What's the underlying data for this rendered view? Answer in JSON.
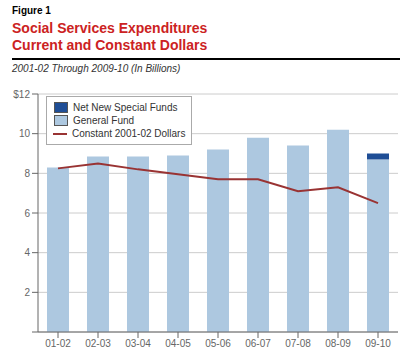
{
  "chart_data": {
    "type": "bar",
    "stacked": true,
    "annotations": [
      "Figure 1"
    ],
    "title": "Social Services Expenditures\nCurrent and Constant Dollars",
    "subtitle": "2001-02 Through 2009-10 (In Billions)",
    "categories": [
      "01-02",
      "02-03",
      "03-04",
      "04-05",
      "05-06",
      "06-07",
      "07-08",
      "08-09",
      "09-10"
    ],
    "series": [
      {
        "name": "Net New Special Funds",
        "type": "bar",
        "color": "#1f4e96",
        "values": [
          0.0,
          0.0,
          0.0,
          0.0,
          0.0,
          0.0,
          0.0,
          0.0,
          0.3
        ]
      },
      {
        "name": "General Fund",
        "type": "bar",
        "color": "#adc8e0",
        "values": [
          8.3,
          8.85,
          8.85,
          8.9,
          9.2,
          9.8,
          9.4,
          10.2,
          8.7
        ]
      },
      {
        "name": "Constant 2001-02 Dollars",
        "type": "line",
        "color": "#993333",
        "values": [
          8.25,
          8.5,
          8.2,
          7.95,
          7.7,
          7.7,
          7.1,
          7.3,
          6.5
        ]
      }
    ],
    "ylim": [
      0,
      12
    ],
    "yticks": [
      {
        "value": 0,
        "label": ""
      },
      2,
      4,
      6,
      8,
      10,
      12,
      {
        "value": 12,
        "label": "$12"
      }
    ],
    "grid": true,
    "legend": "upper left"
  }
}
